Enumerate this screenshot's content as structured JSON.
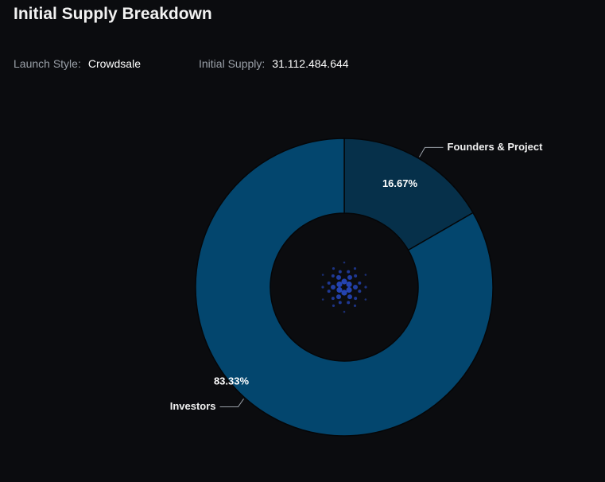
{
  "header": {
    "title": "Initial Supply Breakdown",
    "launch_style_label": "Launch Style:",
    "launch_style_value": "Crowdsale",
    "initial_supply_label": "Initial Supply:",
    "initial_supply_value": "31.112.484.644"
  },
  "center_logo": {
    "icon": "cardano-logo-icon",
    "color": "#2a4fd6"
  },
  "chart_data": {
    "type": "pie",
    "donut": true,
    "legend": "none",
    "labels_on_slices": true,
    "slices": [
      {
        "name": "Founders & Project",
        "value": 16.67,
        "label": "16.67%",
        "color": "#06304a"
      },
      {
        "name": "Investors",
        "value": 83.33,
        "label": "83.33%",
        "color": "#03466e"
      }
    ]
  }
}
